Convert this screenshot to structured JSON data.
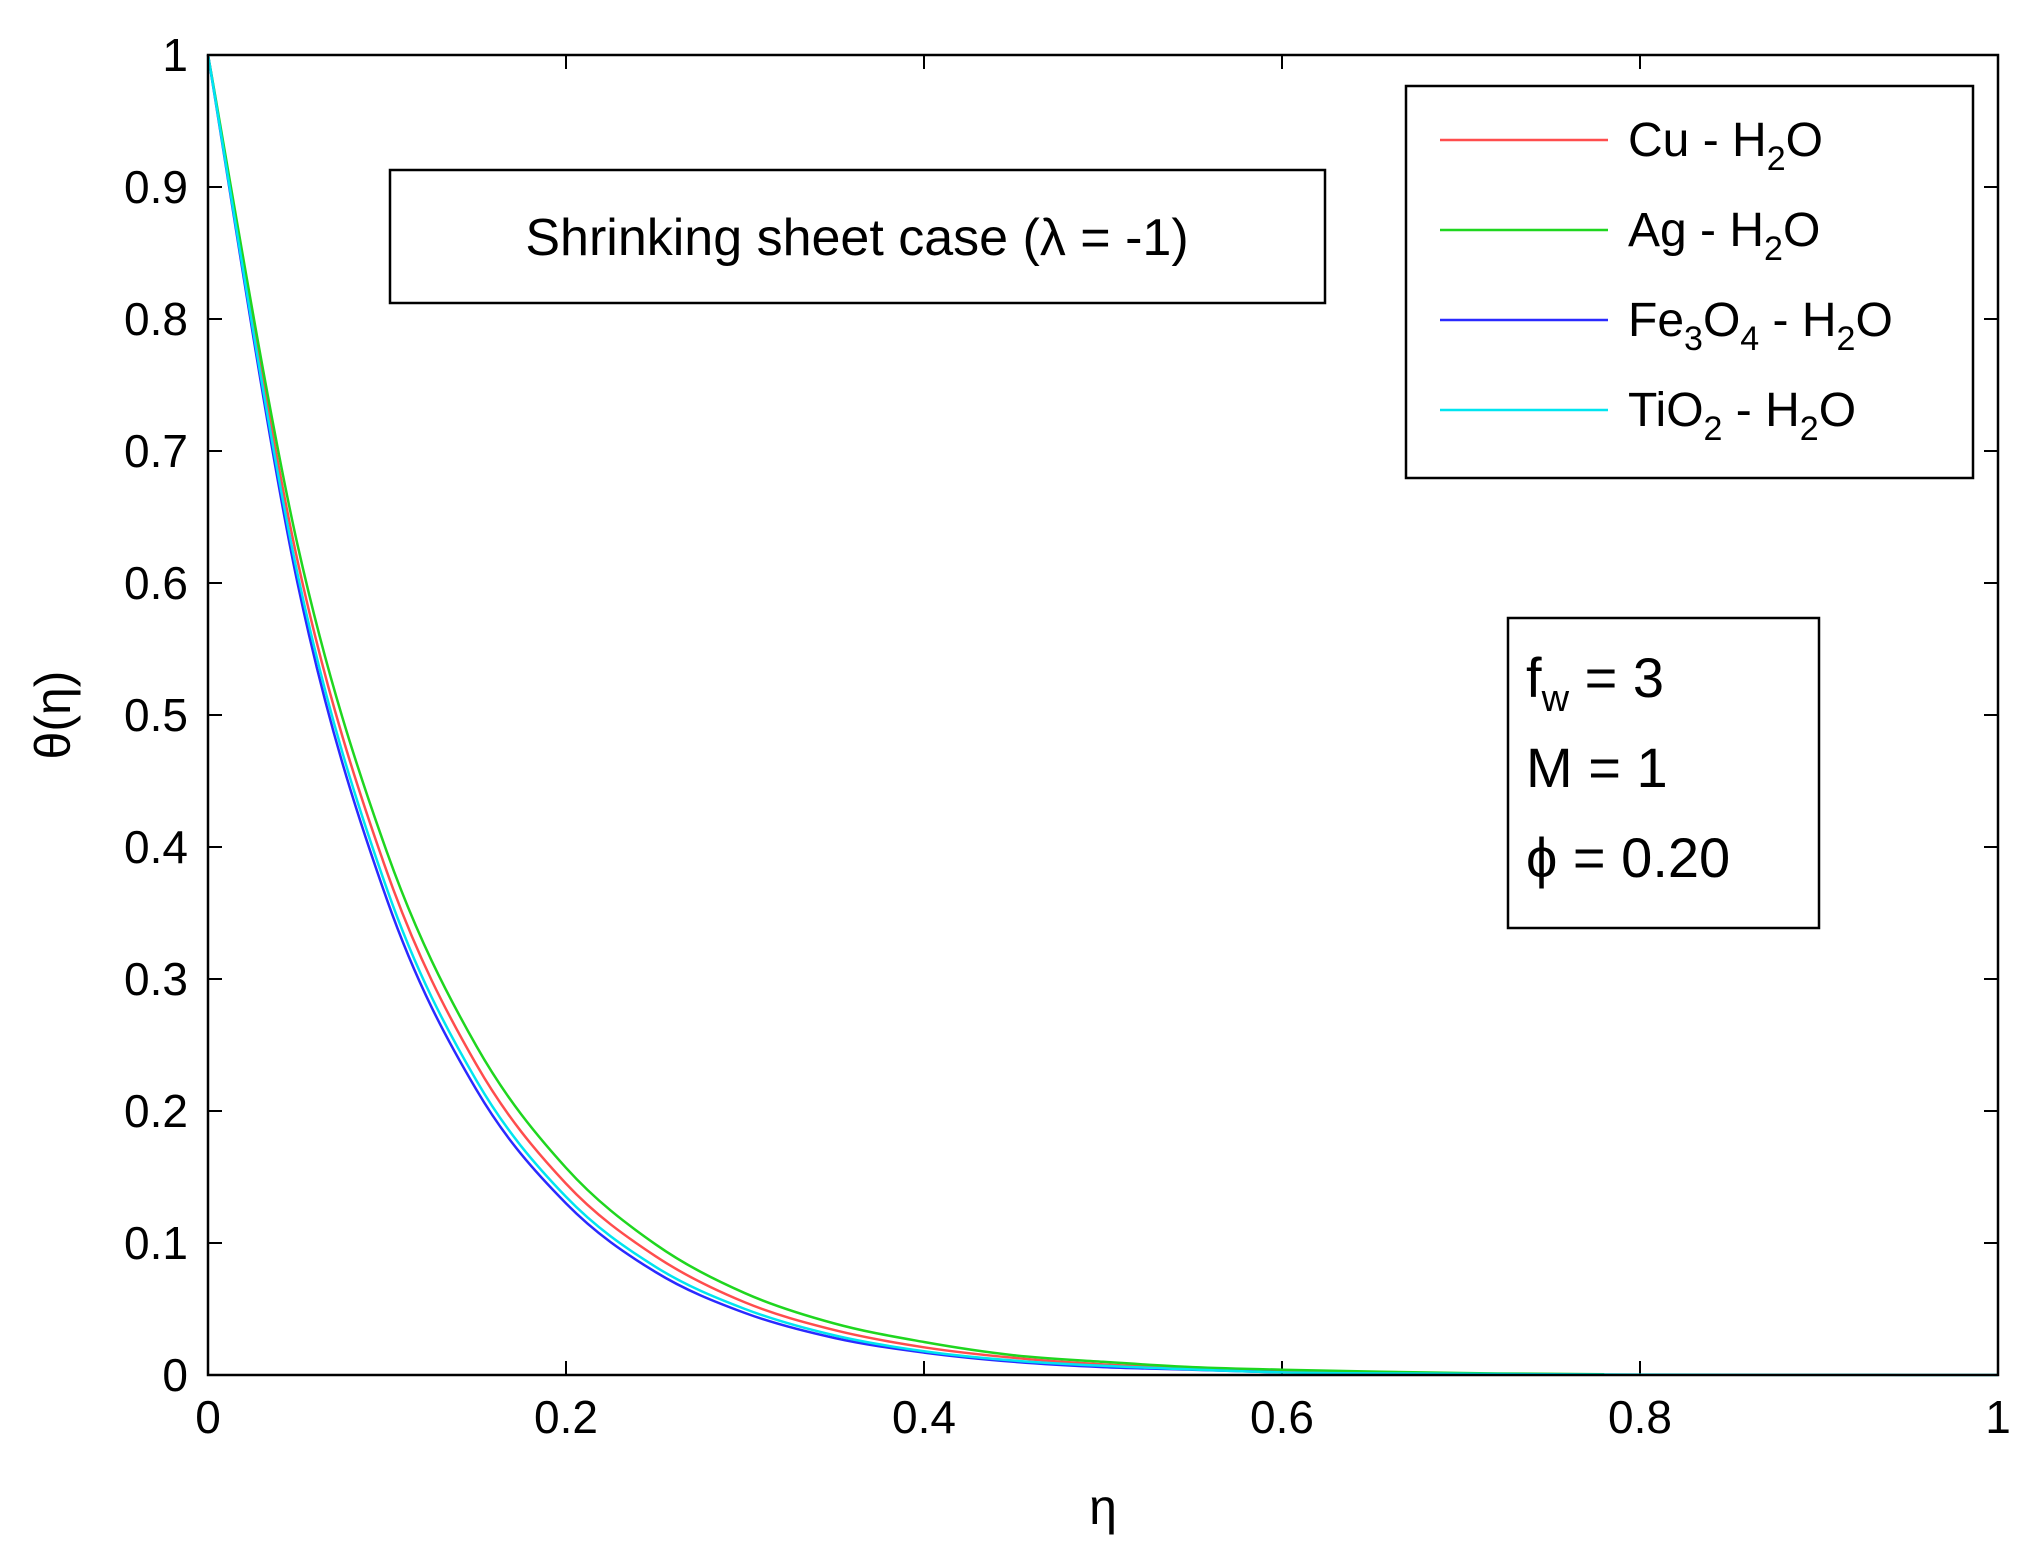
{
  "chart_data": {
    "type": "line",
    "xlabel": "η",
    "ylabel": "θ(η)",
    "xlim": [
      0,
      1
    ],
    "ylim": [
      0,
      1
    ],
    "xticks": [
      "0",
      "0.2",
      "0.4",
      "0.6",
      "0.8",
      "1"
    ],
    "yticks": [
      "0",
      "0.1",
      "0.2",
      "0.3",
      "0.4",
      "0.5",
      "0.6",
      "0.7",
      "0.8",
      "0.9",
      "1"
    ],
    "grid": false,
    "legend_position": "top-right",
    "legend": [
      {
        "base": "Cu - H",
        "sub": "2",
        "tail": "O",
        "color": "#ff4d4d"
      },
      {
        "base": "Ag - H",
        "sub": "2",
        "tail": "O",
        "color": "#1fd61f"
      },
      {
        "parts": [
          [
            "Fe",
            ""
          ],
          [
            "3",
            "sub"
          ],
          [
            "O",
            ""
          ],
          [
            "4",
            "sub"
          ],
          [
            " - H",
            ""
          ],
          [
            "2",
            "sub"
          ],
          [
            "O",
            ""
          ]
        ],
        "color": "#2a2aff"
      },
      {
        "parts": [
          [
            "TiO",
            ""
          ],
          [
            "2",
            "sub"
          ],
          [
            " - H",
            ""
          ],
          [
            "2",
            "sub"
          ],
          [
            "O",
            ""
          ]
        ],
        "color": "#00e5f0"
      }
    ],
    "annotation": "Shrinking sheet case (λ = -1)",
    "parameters": [
      {
        "parts": [
          [
            "f",
            ""
          ],
          [
            "w",
            "sub"
          ],
          [
            " = 3",
            ""
          ]
        ]
      },
      {
        "parts": [
          [
            "M = 1",
            ""
          ]
        ]
      },
      {
        "parts": [
          [
            "ϕ = 0.20",
            ""
          ]
        ]
      }
    ],
    "series": [
      {
        "name": "Cu - H2O",
        "color": "#ff4d4d",
        "x": [
          0,
          0.05,
          0.1,
          0.15,
          0.2,
          0.25,
          0.3,
          0.35,
          0.4,
          0.45,
          0.5,
          0.55,
          0.6,
          0.7,
          0.78
        ],
        "y": [
          1,
          0.617,
          0.381,
          0.235,
          0.145,
          0.09,
          0.055,
          0.034,
          0.021,
          0.013,
          0.008,
          0.005,
          0.003,
          0.001,
          0.0004
        ]
      },
      {
        "name": "Ag - H2O",
        "color": "#1fd61f",
        "x": [
          0,
          0.05,
          0.1,
          0.15,
          0.2,
          0.25,
          0.3,
          0.35,
          0.4,
          0.45,
          0.5,
          0.55,
          0.6,
          0.7,
          0.78
        ],
        "y": [
          1,
          0.629,
          0.396,
          0.249,
          0.157,
          0.099,
          0.062,
          0.039,
          0.025,
          0.015,
          0.01,
          0.006,
          0.004,
          0.0015,
          0.0006
        ]
      },
      {
        "name": "Fe3O4 - H2O",
        "color": "#2a2aff",
        "x": [
          0,
          0.05,
          0.1,
          0.15,
          0.2,
          0.25,
          0.3,
          0.35,
          0.4,
          0.45,
          0.5,
          0.55,
          0.6
        ],
        "y": [
          1,
          0.6,
          0.36,
          0.216,
          0.13,
          0.078,
          0.047,
          0.028,
          0.017,
          0.01,
          0.006,
          0.004,
          0.002
        ]
      },
      {
        "name": "TiO2 - H2O",
        "color": "#00e5f0",
        "x": [
          0,
          0.05,
          0.1,
          0.15,
          0.2,
          0.25,
          0.3,
          0.35,
          0.4,
          0.45,
          0.5,
          0.6,
          0.7,
          0.8,
          0.9,
          1.0
        ],
        "y": [
          1,
          0.607,
          0.368,
          0.223,
          0.135,
          0.082,
          0.05,
          0.03,
          0.018,
          0.011,
          0.007,
          0.002,
          0.001,
          0.0003,
          0.0001,
          0
        ]
      }
    ]
  }
}
